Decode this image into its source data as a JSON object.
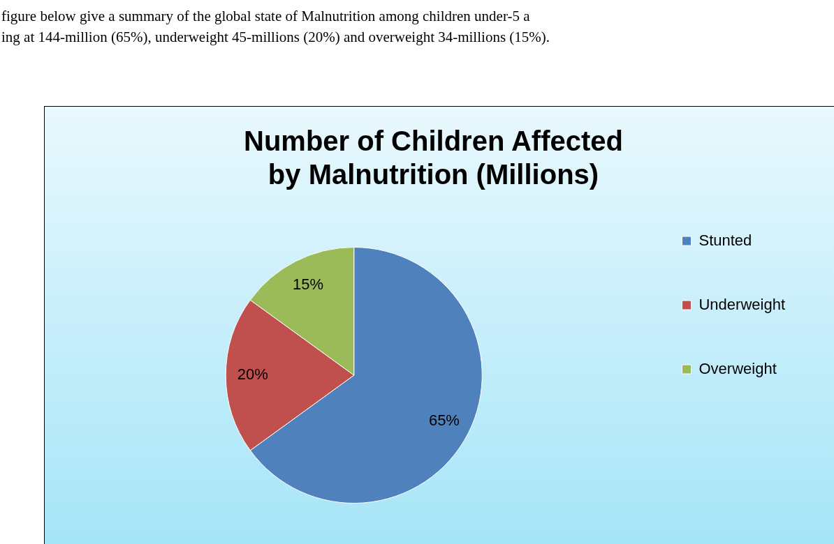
{
  "chart_data": {
    "type": "pie",
    "title": "Number of Children Affected by Malnutrition (Millions)",
    "annotations": [
      "figure below give a summary of the global state of Malnutrition among children under-5 a",
      "ing at 144-million (65%), underweight 45-millions (20%) and overweight 34-millions (15%)."
    ],
    "categories": [
      "Stunted",
      "Underweight",
      "Overweight"
    ],
    "values": [
      65,
      20,
      15
    ],
    "value_labels": [
      "65%",
      "20%",
      "15%"
    ],
    "colors": [
      "#4f81bd",
      "#c0504d",
      "#9bbb59"
    ],
    "legend": "right"
  }
}
